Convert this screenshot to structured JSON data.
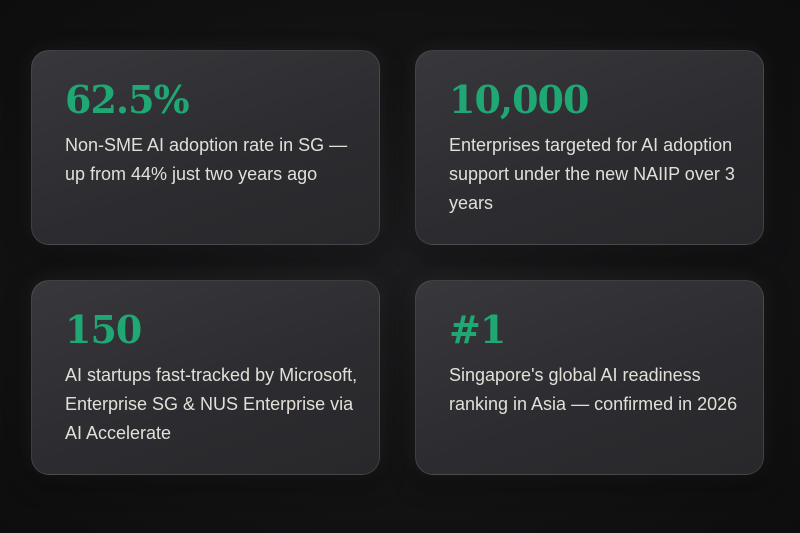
{
  "accent_color": "#1fa874",
  "stats": [
    {
      "value": "62.5%",
      "description": "Non-SME AI adoption rate in SG — up from 44% just two years ago"
    },
    {
      "value": "10,000",
      "description": "Enterprises targeted for AI adoption support under the new NAIIP over 3 years"
    },
    {
      "value": "150",
      "description": "AI startups fast-tracked by Microsoft, Enterprise SG & NUS Enterprise via AI Accelerate"
    },
    {
      "value": "#1",
      "description": "Singapore's global AI readiness ranking in Asia — confirmed in 2026"
    }
  ]
}
